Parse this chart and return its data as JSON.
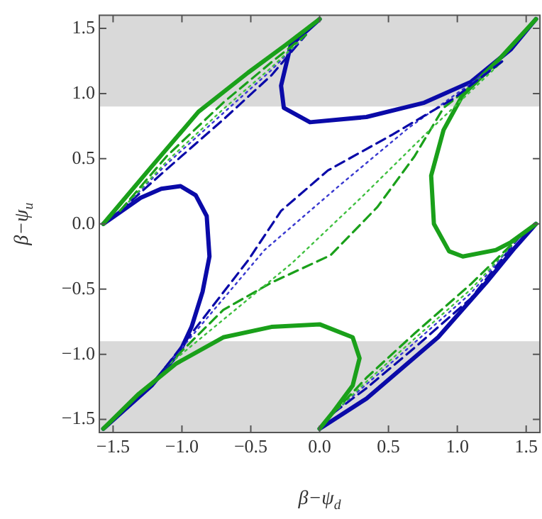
{
  "chart_data": {
    "type": "line",
    "xlabel": "β−ψ$_{d}$",
    "ylabel": "β−ψ$_{u}$",
    "xlim": [
      -1.6,
      1.6
    ],
    "ylim": [
      -1.6,
      1.6
    ],
    "xticks": [
      {
        "value": -1.5,
        "label": "−1.5"
      },
      {
        "value": -1,
        "label": "−1.0"
      },
      {
        "value": -0.5,
        "label": "−0.5"
      },
      {
        "value": 0,
        "label": "0.0"
      },
      {
        "value": 0.5,
        "label": "0.5"
      },
      {
        "value": 1,
        "label": "1.0"
      },
      {
        "value": 1.5,
        "label": "1.5"
      }
    ],
    "yticks": [
      {
        "value": -1.5,
        "label": "−1.5"
      },
      {
        "value": -1,
        "label": "−1.0"
      },
      {
        "value": -0.5,
        "label": "−0.5"
      },
      {
        "value": 0,
        "label": "0.0"
      },
      {
        "value": 0.5,
        "label": "0.5"
      },
      {
        "value": 1,
        "label": "1.0"
      },
      {
        "value": 1.5,
        "label": "1.5"
      }
    ],
    "grid": false,
    "legend": false,
    "marker": "none",
    "bands": [
      {
        "axis": "y",
        "from": 0.9,
        "to": 1.6,
        "color": "#d9d9d9"
      },
      {
        "axis": "y",
        "from": -1.6,
        "to": -0.9,
        "color": "#d9d9d9"
      }
    ],
    "series": [
      {
        "color": "#0a0aa8",
        "line_style": "dashed",
        "x": [
          -1.12,
          -0.52,
          -0.28,
          0.06,
          0.52,
          0.97,
          1.33
        ],
        "values": [
          -1.1,
          -0.28,
          0.1,
          0.41,
          0.68,
          0.96,
          1.25
        ]
      },
      {
        "color": "#3a3ad0",
        "line_style": "dotted",
        "x": [
          -1.12,
          -0.4,
          0.15,
          0.65,
          1.33
        ],
        "values": [
          -1.1,
          -0.2,
          0.3,
          0.74,
          1.25
        ]
      },
      {
        "color": "#40c040",
        "line_style": "dotted",
        "x": [
          -1.12,
          -0.2,
          0.3,
          0.78,
          1.33
        ],
        "values": [
          -1.1,
          -0.3,
          0.2,
          0.7,
          1.25
        ]
      },
      {
        "color": "#1aa01a",
        "line_style": "dashed",
        "x": [
          -1.12,
          -0.7,
          -0.35,
          0.08,
          0.42,
          0.69,
          0.9,
          1.33
        ],
        "values": [
          -1.1,
          -0.66,
          -0.45,
          -0.24,
          0.13,
          0.52,
          0.89,
          1.25
        ]
      },
      {
        "color": "#1aa01a",
        "line_style": "dashed",
        "x": [
          -1.45,
          -1.11,
          -0.7,
          -0.35,
          -0.1
        ],
        "values": [
          0.1,
          0.52,
          0.93,
          1.24,
          1.45
        ]
      },
      {
        "color": "#40c040",
        "line_style": "dotted",
        "x": [
          -1.45,
          -1.11,
          -0.7,
          -0.35,
          -0.1
        ],
        "values": [
          0.1,
          0.48,
          0.88,
          1.2,
          1.45
        ]
      },
      {
        "color": "#3a3ad0",
        "line_style": "dotted",
        "x": [
          -1.45,
          -1.11,
          -0.7,
          -0.35,
          -0.1
        ],
        "values": [
          0.1,
          0.46,
          0.85,
          1.18,
          1.45
        ]
      },
      {
        "color": "#0a0aa8",
        "line_style": "dashed",
        "x": [
          -1.45,
          -1.11,
          -0.7,
          -0.35,
          -0.1
        ],
        "values": [
          0.1,
          0.42,
          0.8,
          1.14,
          1.45
        ]
      },
      {
        "color": "#1aa01a",
        "line_style": "dashed",
        "x": [
          0.1,
          0.34,
          0.69,
          1.1,
          1.45
        ],
        "values": [
          -1.45,
          -1.18,
          -0.84,
          -0.46,
          -0.1
        ]
      },
      {
        "color": "#40c040",
        "line_style": "dotted",
        "x": [
          0.1,
          0.34,
          0.69,
          1.1,
          1.45
        ],
        "values": [
          -1.45,
          -1.21,
          -0.88,
          -0.5,
          -0.1
        ]
      },
      {
        "color": "#3a3ad0",
        "line_style": "dotted",
        "x": [
          0.1,
          0.34,
          0.69,
          1.1,
          1.45
        ],
        "values": [
          -1.45,
          -1.23,
          -0.91,
          -0.53,
          -0.1
        ]
      },
      {
        "color": "#0a0aa8",
        "line_style": "dashed",
        "x": [
          0.1,
          0.34,
          0.69,
          1.1,
          1.45
        ],
        "values": [
          -1.45,
          -1.26,
          -0.95,
          -0.57,
          -0.1
        ]
      },
      {
        "color": "#1aa01a",
        "line_style": "solid",
        "x": [
          -1.571,
          -1.22,
          -0.88,
          -0.52,
          -0.25,
          0
        ],
        "values": [
          0,
          0.44,
          0.86,
          1.16,
          1.37,
          1.571
        ]
      },
      {
        "color": "#1aa01a",
        "line_style": "solid",
        "x": [
          1.571,
          1.31,
          1.04,
          0.9,
          0.81,
          0.83,
          0.94,
          1.04,
          1.28,
          1.39,
          1.571
        ],
        "values": [
          1.571,
          1.27,
          0.99,
          0.72,
          0.37,
          0,
          -0.21,
          -0.25,
          -0.2,
          -0.14,
          0
        ]
      },
      {
        "color": "#1aa01a",
        "line_style": "solid",
        "x": [
          -1.571,
          -1.32,
          -1.04,
          -0.7,
          -0.35,
          0,
          0.24,
          0.29,
          0.24,
          0.1,
          0
        ],
        "values": [
          -1.571,
          -1.31,
          -1.07,
          -0.87,
          -0.79,
          -0.77,
          -0.87,
          -1.03,
          -1.24,
          -1.44,
          -1.571
        ]
      },
      {
        "color": "#0a0aa8",
        "line_style": "solid",
        "x": [
          -1.571,
          -1.3,
          -1.15,
          -1.01,
          -0.9,
          -0.82,
          -0.8,
          -0.85,
          -0.93,
          -1.01,
          -1.22,
          -1.571
        ],
        "values": [
          0,
          0.2,
          0.27,
          0.29,
          0.22,
          0.06,
          -0.25,
          -0.52,
          -0.79,
          -0.97,
          -1.24,
          -1.571
        ]
      },
      {
        "color": "#0a0aa8",
        "line_style": "solid",
        "x": [
          0,
          0.34,
          0.86,
          1.21,
          1.42,
          1.571
        ],
        "values": [
          -1.571,
          -1.34,
          -0.87,
          -0.45,
          -0.18,
          0
        ]
      },
      {
        "color": "#0a0aa8",
        "line_style": "solid",
        "x": [
          0,
          -0.21,
          -0.28,
          -0.26,
          -0.07,
          0.34,
          0.76,
          1.1,
          1.39,
          1.571
        ],
        "values": [
          1.571,
          1.37,
          1.06,
          0.89,
          0.78,
          0.82,
          0.93,
          1.09,
          1.34,
          1.571
        ]
      }
    ]
  }
}
